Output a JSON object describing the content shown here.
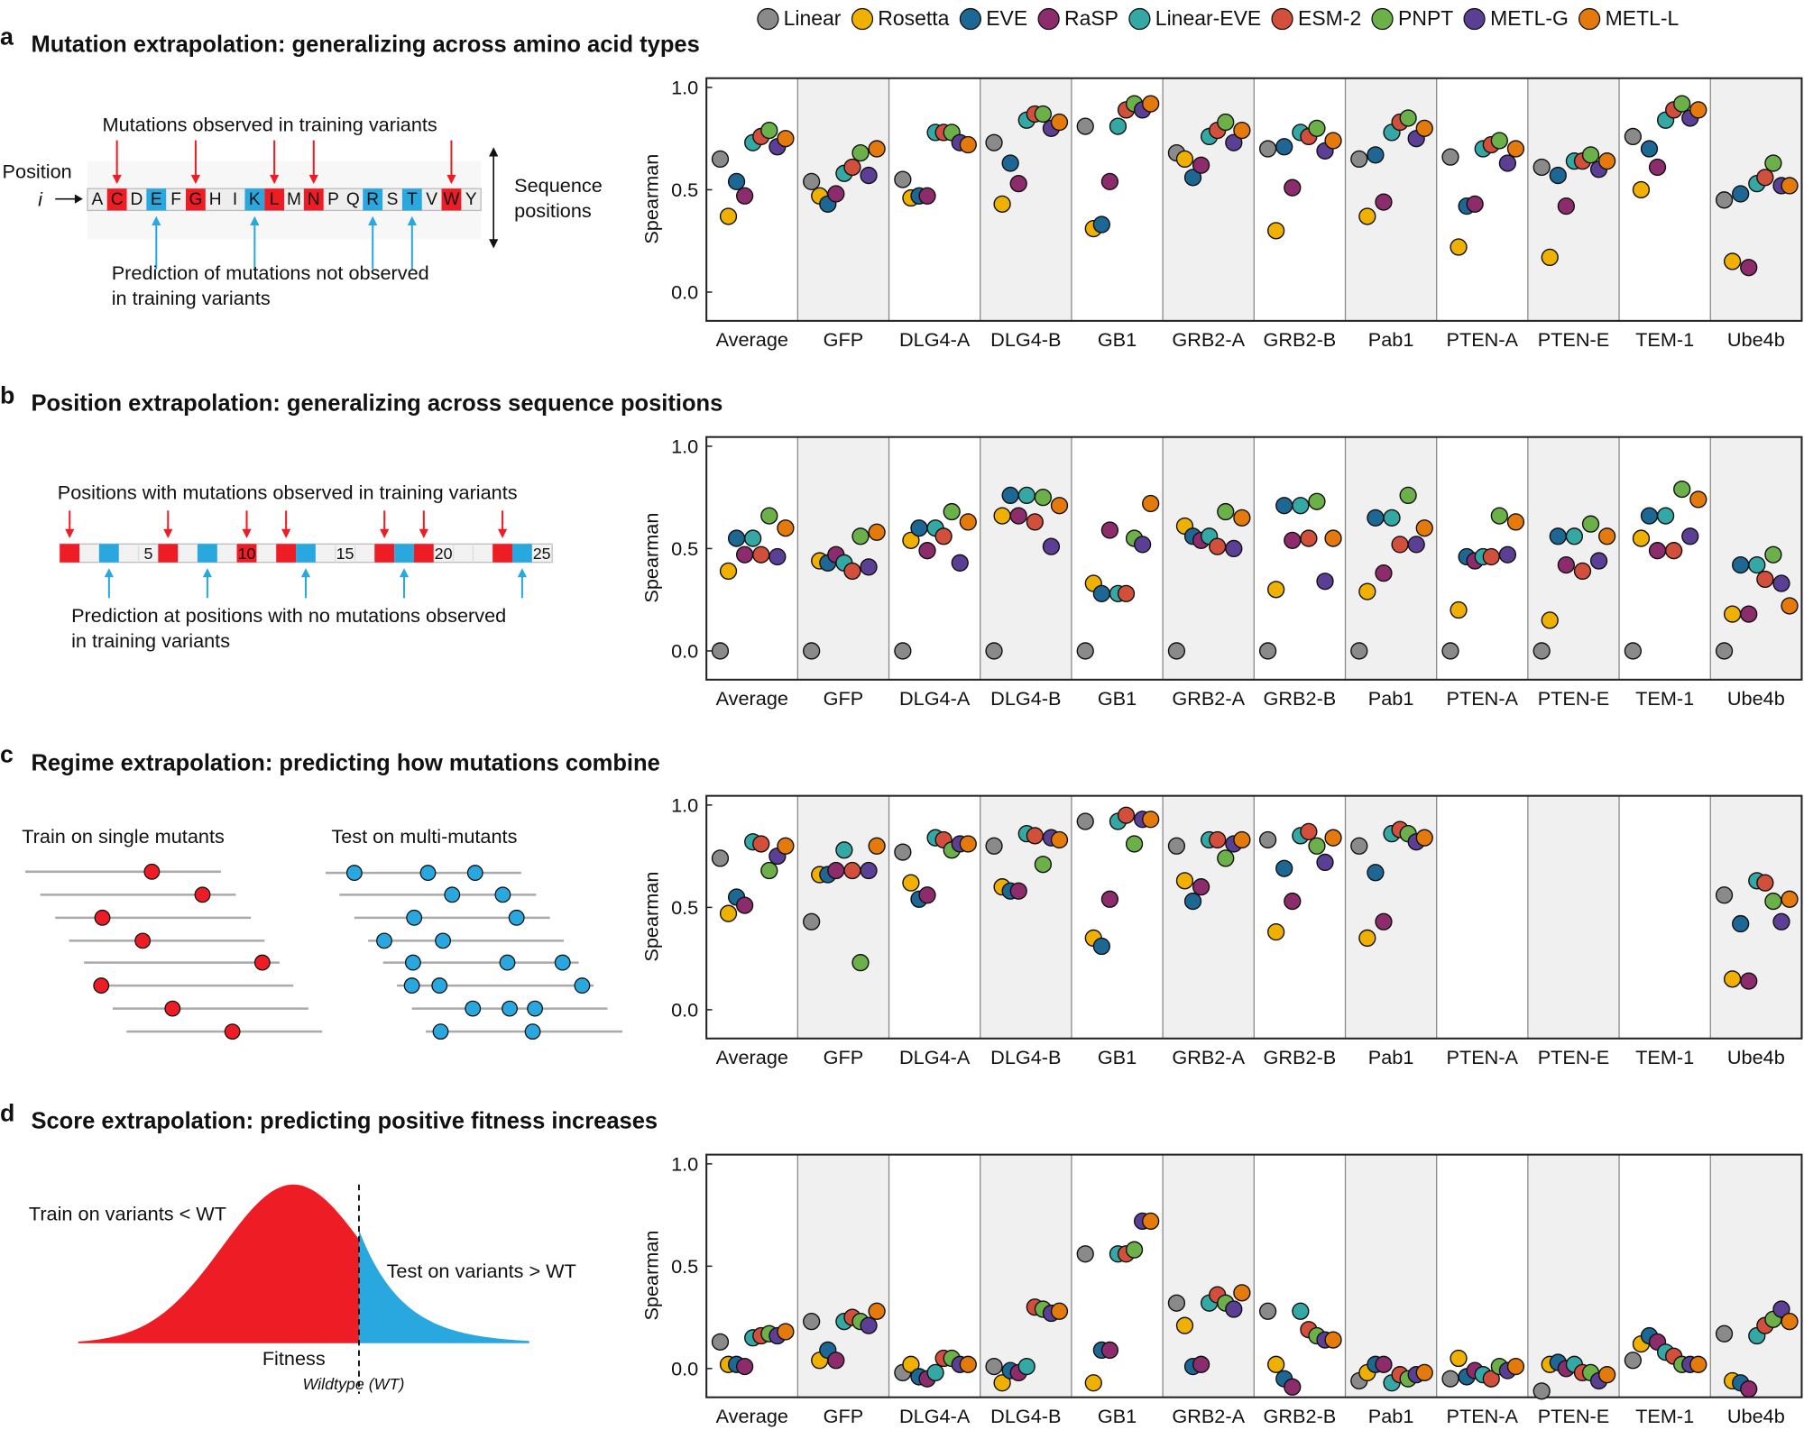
{
  "legend": [
    {
      "name": "Linear",
      "color": "#8a8a8a"
    },
    {
      "name": "Rosetta",
      "color": "#f0b000"
    },
    {
      "name": "EVE",
      "color": "#1d6794"
    },
    {
      "name": "RaSP",
      "color": "#8c2c6c"
    },
    {
      "name": "Linear-EVE",
      "color": "#33a8a4"
    },
    {
      "name": "ESM-2",
      "color": "#d24f3b"
    },
    {
      "name": "PNPT",
      "color": "#6cb049"
    },
    {
      "name": "METL-G",
      "color": "#5a3f95"
    },
    {
      "name": "METL-L",
      "color": "#e47a0b"
    }
  ],
  "panels": [
    {
      "letter": "a",
      "title": "Mutation extrapolation: generalizing across amino acid types"
    },
    {
      "letter": "b",
      "title": "Position extrapolation: generalizing across sequence positions"
    },
    {
      "letter": "c",
      "title": "Regime extrapolation: predicting how mutations combine"
    },
    {
      "letter": "d",
      "title": "Score extrapolation: predicting positive fitness increases"
    }
  ],
  "schematic_a": {
    "top_label": "Mutations observed in training variants",
    "position_label": "Position",
    "index_label": "i",
    "sequence": [
      "A",
      "C",
      "D",
      "E",
      "F",
      "G",
      "H",
      "I",
      "K",
      "L",
      "M",
      "N",
      "P",
      "Q",
      "R",
      "S",
      "T",
      "V",
      "W",
      "Y"
    ],
    "train_residues": [
      "C",
      "G",
      "L",
      "N",
      "W"
    ],
    "test_residues": [
      "E",
      "K",
      "R",
      "T"
    ],
    "side_label_1": "Sequence",
    "side_label_2": "positions",
    "bottom_label_1": "Prediction of mutations not observed",
    "bottom_label_2": "in training variants"
  },
  "schematic_b": {
    "top_label": "Positions with mutations observed in training variants",
    "train_positions": [
      1,
      6,
      10,
      12,
      17,
      19,
      23
    ],
    "test_positions": [
      3,
      8,
      13,
      18,
      24
    ],
    "tick_labels": [
      "5",
      "10",
      "15",
      "20",
      "25"
    ],
    "bottom_label_1": "Prediction at positions with no mutations observed",
    "bottom_label_2": "in training variants"
  },
  "schematic_c": {
    "train_label": "Train on single mutants",
    "test_label": "Test on multi-mutants"
  },
  "schematic_d": {
    "train_label": "Train on variants < WT",
    "test_label": "Test on variants > WT",
    "x_label": "Fitness",
    "wt_label": "Wildtype (WT)"
  },
  "chart_data": [
    {
      "type": "scatter",
      "panel": "a",
      "ylabel": "Spearman",
      "ylim": [
        -0.14,
        1.05
      ],
      "yticks": [
        "1.0",
        "0.5",
        "0.0"
      ],
      "categories": [
        "Average",
        "GFP",
        "DLG4-A",
        "DLG4-B",
        "GB1",
        "GRB2-A",
        "GRB2-B",
        "Pab1",
        "PTEN-A",
        "PTEN-E",
        "TEM-1",
        "Ube4b"
      ],
      "series_order": [
        "Linear",
        "Rosetta",
        "EVE",
        "RaSP",
        "Linear-EVE",
        "ESM-2",
        "PNPT",
        "METL-G",
        "METL-L"
      ],
      "values": [
        [
          0.65,
          0.37,
          0.54,
          0.47,
          0.73,
          0.76,
          0.79,
          0.71,
          0.75
        ],
        [
          0.54,
          0.47,
          0.43,
          0.48,
          0.58,
          0.61,
          0.68,
          0.57,
          0.7
        ],
        [
          0.55,
          0.46,
          0.47,
          0.47,
          0.78,
          0.78,
          0.78,
          0.73,
          0.72
        ],
        [
          0.73,
          0.43,
          0.63,
          0.53,
          0.84,
          0.87,
          0.87,
          0.8,
          0.83
        ],
        [
          0.81,
          0.31,
          0.33,
          0.54,
          0.81,
          0.89,
          0.92,
          0.89,
          0.92
        ],
        [
          0.68,
          0.65,
          0.56,
          0.62,
          0.76,
          0.79,
          0.83,
          0.73,
          0.79
        ],
        [
          0.7,
          0.3,
          0.71,
          0.51,
          0.78,
          0.76,
          0.8,
          0.69,
          0.74
        ],
        [
          0.65,
          0.37,
          0.67,
          0.44,
          0.78,
          0.83,
          0.85,
          0.75,
          0.8
        ],
        [
          0.66,
          0.22,
          0.42,
          0.43,
          0.7,
          0.72,
          0.74,
          0.63,
          0.7
        ],
        [
          0.61,
          0.17,
          0.57,
          0.42,
          0.64,
          0.64,
          0.67,
          0.6,
          0.64
        ],
        [
          0.76,
          0.5,
          0.7,
          0.61,
          0.84,
          0.89,
          0.92,
          0.85,
          0.89
        ],
        [
          0.45,
          0.15,
          0.48,
          0.12,
          0.53,
          0.56,
          0.63,
          0.52,
          0.52
        ]
      ]
    },
    {
      "type": "scatter",
      "panel": "b",
      "ylabel": "Spearman",
      "ylim": [
        -0.14,
        1.05
      ],
      "yticks": [
        "1.0",
        "0.5",
        "0.0"
      ],
      "categories": [
        "Average",
        "GFP",
        "DLG4-A",
        "DLG4-B",
        "GB1",
        "GRB2-A",
        "GRB2-B",
        "Pab1",
        "PTEN-A",
        "PTEN-E",
        "TEM-1",
        "Ube4b"
      ],
      "series_order": [
        "Linear",
        "Rosetta",
        "EVE",
        "RaSP",
        "Linear-EVE",
        "ESM-2",
        "PNPT",
        "METL-G",
        "METL-L"
      ],
      "values": [
        [
          0,
          0.39,
          0.55,
          0.47,
          0.55,
          0.47,
          0.66,
          0.46,
          0.6
        ],
        [
          0,
          0.44,
          0.43,
          0.47,
          0.43,
          0.39,
          0.56,
          0.41,
          0.58
        ],
        [
          0,
          0.54,
          0.6,
          0.49,
          0.6,
          0.56,
          0.68,
          0.43,
          0.63
        ],
        [
          0,
          0.66,
          0.76,
          0.66,
          0.76,
          0.63,
          0.75,
          0.51,
          0.71
        ],
        [
          0,
          0.33,
          0.28,
          0.59,
          0.28,
          0.28,
          0.55,
          0.52,
          0.72
        ],
        [
          0,
          0.61,
          0.56,
          0.54,
          0.56,
          0.51,
          0.68,
          0.5,
          0.65
        ],
        [
          0,
          0.3,
          0.71,
          0.54,
          0.71,
          0.55,
          0.73,
          0.34,
          0.55
        ],
        [
          0,
          0.29,
          0.65,
          0.38,
          0.65,
          0.52,
          0.76,
          0.52,
          0.6
        ],
        [
          0,
          0.2,
          0.46,
          0.44,
          0.46,
          0.46,
          0.66,
          0.47,
          0.63
        ],
        [
          0,
          0.15,
          0.56,
          0.42,
          0.56,
          0.39,
          0.62,
          0.44,
          0.56
        ],
        [
          0,
          0.55,
          0.66,
          0.49,
          0.66,
          0.49,
          0.79,
          0.56,
          0.74
        ],
        [
          0,
          0.18,
          0.42,
          0.18,
          0.42,
          0.35,
          0.47,
          0.33,
          0.22
        ]
      ]
    },
    {
      "type": "scatter",
      "panel": "c",
      "ylabel": "Spearman",
      "ylim": [
        -0.14,
        1.05
      ],
      "yticks": [
        "1.0",
        "0.5",
        "0.0"
      ],
      "categories": [
        "Average",
        "GFP",
        "DLG4-A",
        "DLG4-B",
        "GB1",
        "GRB2-A",
        "GRB2-B",
        "Pab1",
        "PTEN-A",
        "PTEN-E",
        "TEM-1",
        "Ube4b"
      ],
      "series_order": [
        "Linear",
        "Rosetta",
        "EVE",
        "RaSP",
        "Linear-EVE",
        "ESM-2",
        "PNPT",
        "METL-G",
        "METL-L"
      ],
      "values": [
        [
          0.74,
          0.47,
          0.55,
          0.51,
          0.82,
          0.81,
          0.68,
          0.75,
          0.8
        ],
        [
          0.43,
          0.66,
          0.66,
          0.68,
          0.78,
          0.68,
          0.23,
          0.68,
          0.8
        ],
        [
          0.77,
          0.62,
          0.54,
          0.56,
          0.84,
          0.83,
          0.78,
          0.81,
          0.81
        ],
        [
          0.8,
          0.6,
          0.58,
          0.58,
          0.86,
          0.85,
          0.71,
          0.84,
          0.83
        ],
        [
          0.92,
          0.35,
          0.31,
          0.54,
          0.92,
          0.95,
          0.81,
          0.93,
          0.93
        ],
        [
          0.8,
          0.63,
          0.53,
          0.6,
          0.83,
          0.83,
          0.74,
          0.81,
          0.83
        ],
        [
          0.83,
          0.38,
          0.69,
          0.53,
          0.85,
          0.87,
          0.8,
          0.72,
          0.84
        ],
        [
          0.8,
          0.35,
          0.67,
          0.43,
          0.86,
          0.88,
          0.86,
          0.82,
          0.84
        ],
        null,
        null,
        null,
        [
          0.56,
          0.15,
          0.42,
          0.14,
          0.63,
          0.62,
          0.53,
          0.43,
          0.54
        ]
      ]
    },
    {
      "type": "scatter",
      "panel": "d",
      "ylabel": "Spearman",
      "ylim": [
        -0.14,
        1.05
      ],
      "yticks": [
        "1.0",
        "0.5",
        "0.0"
      ],
      "categories": [
        "Average",
        "GFP",
        "DLG4-A",
        "DLG4-B",
        "GB1",
        "GRB2-A",
        "GRB2-B",
        "Pab1",
        "PTEN-A",
        "PTEN-E",
        "TEM-1",
        "Ube4b"
      ],
      "series_order": [
        "Linear",
        "Rosetta",
        "EVE",
        "RaSP",
        "Linear-EVE",
        "ESM-2",
        "PNPT",
        "METL-G",
        "METL-L"
      ],
      "values": [
        [
          0.13,
          0.02,
          0.02,
          0.01,
          0.15,
          0.16,
          0.17,
          0.16,
          0.18
        ],
        [
          0.23,
          0.04,
          0.09,
          0.04,
          0.23,
          0.25,
          0.23,
          0.21,
          0.28
        ],
        [
          -0.02,
          0.02,
          -0.04,
          -0.05,
          -0.02,
          0.05,
          0.05,
          0.02,
          0.02
        ],
        [
          0.01,
          -0.07,
          -0.01,
          -0.02,
          0.01,
          0.3,
          0.29,
          0.27,
          0.28
        ],
        [
          0.56,
          -0.07,
          0.09,
          0.09,
          0.56,
          0.56,
          0.58,
          0.72,
          0.72
        ],
        [
          0.32,
          0.21,
          0.01,
          0.02,
          0.32,
          0.36,
          0.32,
          0.29,
          0.37
        ],
        [
          0.28,
          0.02,
          -0.05,
          -0.09,
          0.28,
          0.19,
          0.16,
          0.14,
          0.14
        ],
        [
          -0.06,
          -0.02,
          0.02,
          0.02,
          -0.07,
          -0.03,
          -0.05,
          -0.03,
          -0.02
        ],
        [
          -0.05,
          0.05,
          -0.04,
          -0.01,
          -0.03,
          -0.05,
          0.01,
          -0.01,
          0.01
        ],
        [
          -0.11,
          0.02,
          0.03,
          0.0,
          0.02,
          -0.02,
          -0.02,
          -0.06,
          -0.03
        ],
        [
          0.04,
          0.12,
          0.16,
          0.13,
          0.08,
          0.06,
          0.02,
          0.02,
          0.02
        ],
        [
          0.17,
          -0.06,
          -0.07,
          -0.1,
          0.16,
          0.21,
          0.24,
          0.29,
          0.23
        ]
      ]
    }
  ]
}
